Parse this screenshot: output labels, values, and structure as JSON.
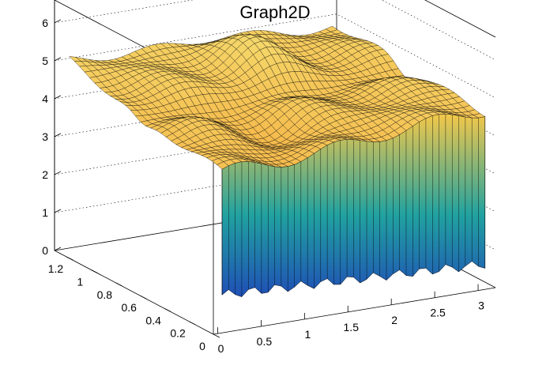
{
  "chart_data": {
    "type": "surface3d",
    "title": "Graph2D",
    "xlabel": "",
    "ylabel": "",
    "zlabel": "",
    "x_ticks": [
      "0",
      "0.5",
      "1",
      "1.5",
      "2",
      "2.5",
      "3"
    ],
    "y_ticks": [
      "0",
      "0.2",
      "0.4",
      "0.6",
      "0.8",
      "1",
      "1.2"
    ],
    "z_ticks": [
      "0",
      "1",
      "2",
      "3",
      "4",
      "5",
      "6"
    ],
    "xlim": [
      -0.05,
      3.2
    ],
    "ylim": [
      0,
      1.3
    ],
    "zlim": [
      0,
      6.6
    ],
    "grid": true,
    "palette_low": "#1f4fb6",
    "palette_mid": "#21a2a0",
    "palette_high": "#f4c84a",
    "surface_color": "#f5b847",
    "mesh_color": "#000000"
  }
}
